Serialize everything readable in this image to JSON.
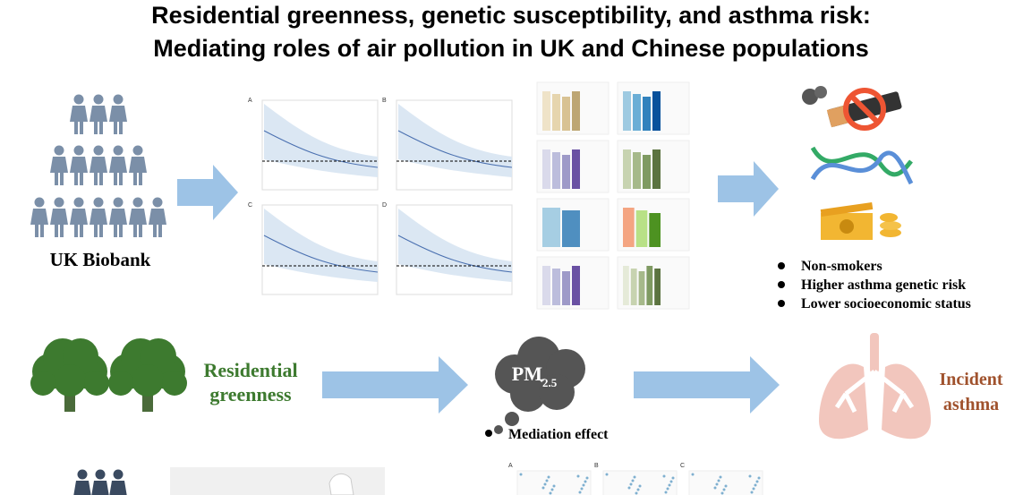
{
  "title": {
    "line1": "Residential greenness, genetic susceptibility, and asthma risk:",
    "line2": "Mediating roles of air pollution in UK and Chinese populations"
  },
  "cohort": "UK Biobank",
  "curve_panels": [
    "A",
    "B",
    "C",
    "D"
  ],
  "bullets": [
    "Non-smokers",
    "Higher asthma genetic risk",
    "Lower socioeconomic status"
  ],
  "exposure": {
    "line1": "Residential",
    "line2": "greenness"
  },
  "mediator": {
    "name": "PM",
    "subscript": "2.5",
    "note": "Mediation effect"
  },
  "outcome": {
    "line1": "Incident",
    "line2": "asthma"
  },
  "bottom_panels": [
    "A",
    "B",
    "C"
  ]
}
